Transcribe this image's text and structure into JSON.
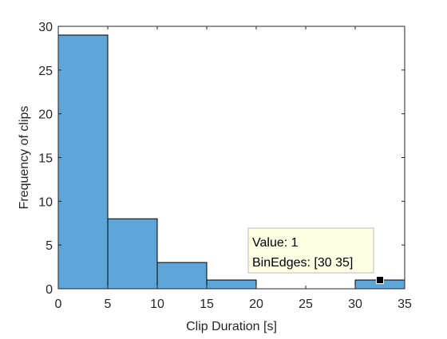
{
  "chart_data": {
    "type": "bar",
    "subtype": "histogram",
    "bin_edges": [
      0,
      5,
      10,
      15,
      20,
      25,
      30,
      35
    ],
    "values": [
      29,
      8,
      3,
      1,
      0,
      0,
      1
    ],
    "xlabel": "Clip Duration [s]",
    "ylabel": "Frequency of clips",
    "xlim": [
      0,
      35
    ],
    "ylim": [
      0,
      30
    ],
    "xticks": [
      0,
      5,
      10,
      15,
      20,
      25,
      30,
      35
    ],
    "yticks": [
      0,
      5,
      10,
      15,
      20,
      25,
      30
    ],
    "grid": false,
    "bar_color": "#5FA6D8",
    "datatip": {
      "value_line": "Value: 1",
      "edges_line": "BinEdges: [30 35]"
    }
  }
}
